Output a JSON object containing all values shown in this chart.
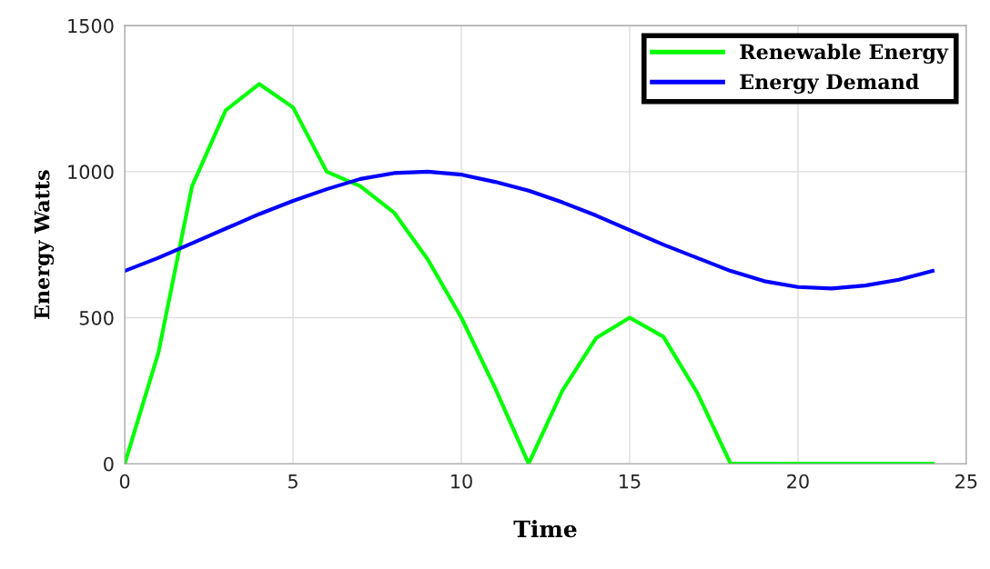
{
  "chart_data": {
    "type": "line",
    "xlabel": "Time",
    "ylabel": "Energy Watts",
    "x": [
      0,
      1,
      2,
      3,
      4,
      5,
      6,
      7,
      8,
      9,
      10,
      11,
      12,
      13,
      14,
      15,
      16,
      17,
      18,
      19,
      20,
      21,
      22,
      23,
      24
    ],
    "series": [
      {
        "name": "Renewable Energy",
        "color": "#00ff00",
        "values": [
          0,
          380,
          950,
          1210,
          1300,
          1220,
          1000,
          950,
          860,
          700,
          500,
          260,
          0,
          250,
          430,
          500,
          435,
          245,
          0,
          0,
          0,
          0,
          0,
          0,
          0
        ]
      },
      {
        "name": "Energy Demand",
        "color": "#0000ff",
        "values": [
          660,
          705,
          755,
          805,
          855,
          900,
          940,
          975,
          995,
          1000,
          990,
          965,
          935,
          895,
          850,
          800,
          750,
          705,
          660,
          625,
          605,
          600,
          610,
          630,
          660
        ]
      }
    ],
    "xlim": [
      0,
      25
    ],
    "xticks": [
      0,
      5,
      10,
      15,
      20,
      25
    ],
    "ylim": [
      0,
      1500
    ],
    "yticks": [
      0,
      500,
      1000,
      1500
    ],
    "grid": true,
    "legend": "top right",
    "line_style": "solid",
    "marker": "none"
  }
}
